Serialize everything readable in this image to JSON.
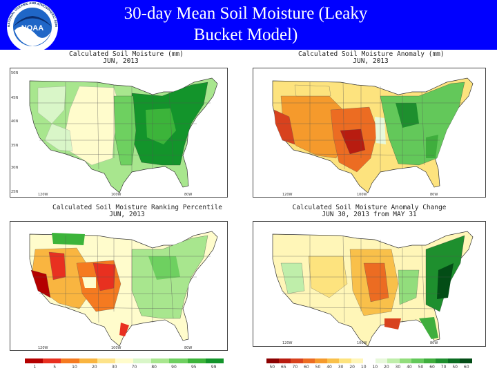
{
  "header": {
    "title_line1": "30-day Mean Soil Moisture (Leaky",
    "title_line2": "Bucket Model)",
    "logo_text": "NOAA",
    "logo_ring": "NATIONAL OCEANIC AND ATMOSPHERIC ADMINISTRATION",
    "bg_color": "#0000ff"
  },
  "panels": [
    {
      "line1": "Calculated Soil Moisture (mm)",
      "line2": "JUN, 2013"
    },
    {
      "line1": "Calculated Soil Moisture Anomaly (mm)",
      "line2": "JUN, 2013"
    },
    {
      "line1": "Calculated Soil Moisture Ranking Percentile",
      "line2": "JUN, 2013"
    },
    {
      "line1": "Calculated Soil Moisture Anomaly Change",
      "line2": "JUN 30, 2013 from MAY 31"
    }
  ],
  "axes": {
    "latitudes": [
      "50N",
      "45N",
      "40N",
      "35N",
      "30N",
      "25N"
    ],
    "longitudes": [
      "120W",
      "100W",
      "80W"
    ]
  },
  "legend_left": {
    "colors": [
      "#b40000",
      "#e83020",
      "#f57a20",
      "#f9b540",
      "#fde38a",
      "#fffccc",
      "#d9f6c8",
      "#a8e68e",
      "#6ed060",
      "#3cb43a",
      "#13942b"
    ],
    "labels": [
      "1",
      "5",
      "10",
      "20",
      "30",
      "70",
      "80",
      "90",
      "95",
      "99"
    ]
  },
  "legend_right": {
    "colors": [
      "#8b0000",
      "#b81c10",
      "#d8421e",
      "#ec6c22",
      "#f59a2c",
      "#f9c04a",
      "#fde37e",
      "#fff6b8",
      "#ffffff",
      "#e7f8da",
      "#bfeeaa",
      "#92dd7c",
      "#63c85a",
      "#3fae3d",
      "#1e8f2e",
      "#0b6d22",
      "#034d16"
    ],
    "labels": [
      "50",
      "65",
      "70",
      "60",
      "50",
      "40",
      "30",
      "20",
      "10",
      "10",
      "20",
      "30",
      "40",
      "50",
      "60",
      "70",
      "50",
      "60"
    ]
  }
}
